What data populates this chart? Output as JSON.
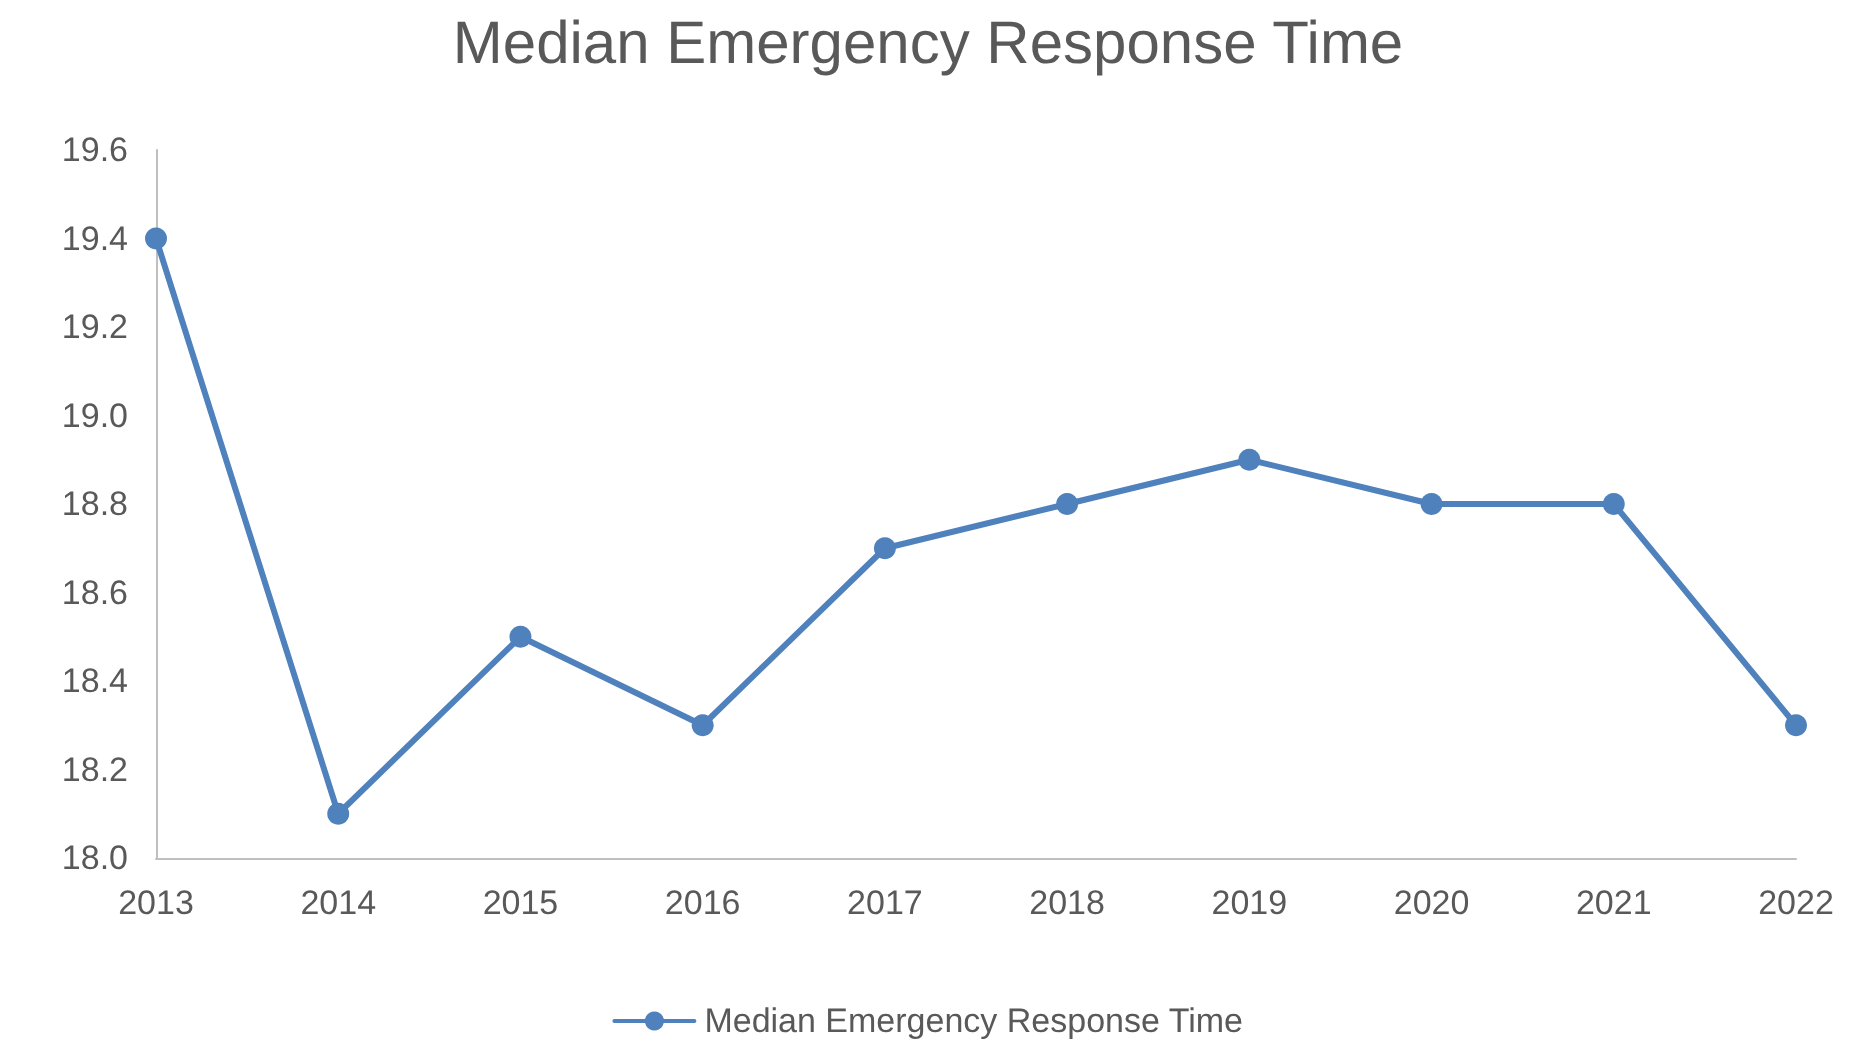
{
  "chart_data": {
    "type": "line",
    "title": "Median Emergency Response Time",
    "categories": [
      "2013",
      "2014",
      "2015",
      "2016",
      "2017",
      "2018",
      "2019",
      "2020",
      "2021",
      "2022"
    ],
    "series": [
      {
        "name": "Median Emergency Response Time",
        "color": "#4f81bd",
        "values": [
          19.4,
          18.1,
          18.5,
          18.3,
          18.7,
          18.8,
          18.9,
          18.8,
          18.8,
          18.3
        ]
      }
    ],
    "ylim": [
      18.0,
      19.6
    ],
    "yticks": [
      {
        "value": 18.0,
        "label": "18.0"
      },
      {
        "value": 18.2,
        "label": "18.2"
      },
      {
        "value": 18.4,
        "label": "18.4"
      },
      {
        "value": 18.6,
        "label": "18.6"
      },
      {
        "value": 18.8,
        "label": "18.8"
      },
      {
        "value": 19.0,
        "label": "19.0"
      },
      {
        "value": 19.2,
        "label": "19.2"
      },
      {
        "value": 19.4,
        "label": "19.4"
      },
      {
        "value": 19.6,
        "label": "19.6"
      }
    ],
    "legend": "bottom",
    "marker": "circle",
    "line_style": "solid"
  }
}
